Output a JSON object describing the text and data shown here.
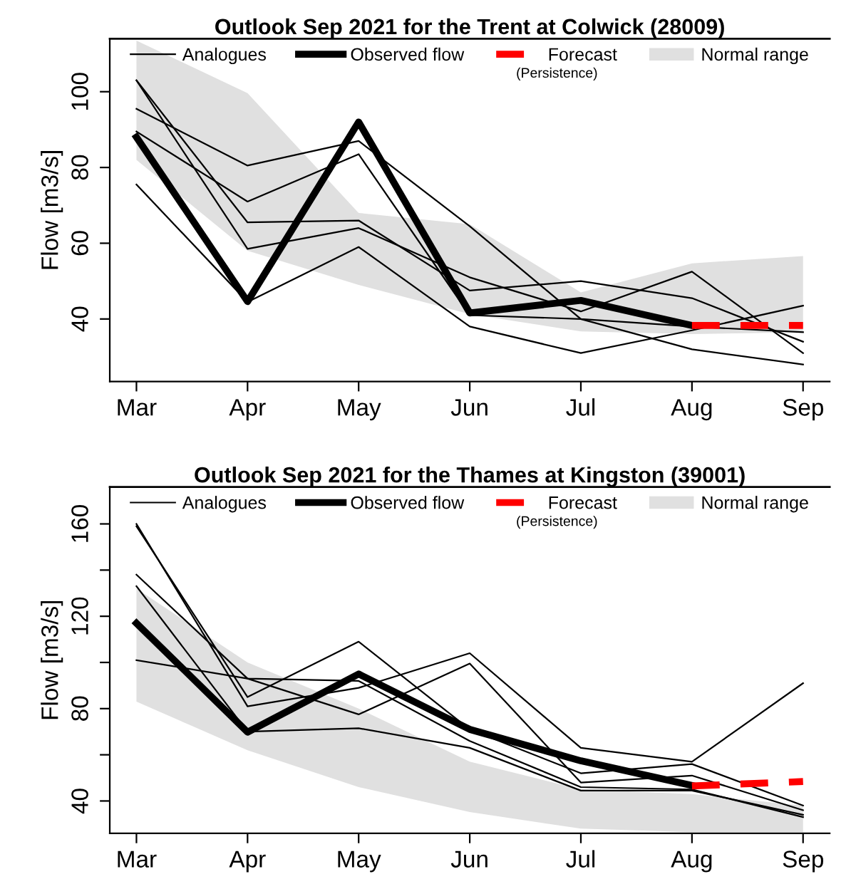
{
  "chart_data": [
    {
      "type": "line",
      "title": "Outlook Sep 2021 for the Trent at Colwick (28009)",
      "ylabel": "Flow [m3/s]",
      "categories": [
        "Mar",
        "Apr",
        "May",
        "Jun",
        "Jul",
        "Aug",
        "Sep"
      ],
      "ylim": [
        23.5,
        114
      ],
      "yticks": [
        40,
        60,
        80,
        100
      ],
      "grid": false,
      "legend": "top",
      "annotations": [
        "(Persistence)"
      ],
      "series": [
        {
          "type": "area",
          "name": "Normal range",
          "color": "#e0e0e0",
          "values": [
            null,
            null,
            null,
            null,
            null,
            null,
            null
          ],
          "lower": [
            82,
            58,
            49,
            41.3,
            36.7,
            36,
            36.5
          ],
          "upper": [
            113.5,
            99.6,
            68,
            65,
            47,
            54.7,
            56.6
          ]
        },
        {
          "name": "Analogues",
          "color": "#000000",
          "values": [
            103,
            65.5,
            66,
            47.5,
            50,
            45.5,
            34
          ]
        },
        {
          "color": "#000000",
          "values": [
            103,
            58.5,
            64,
            51,
            42,
            52.5,
            31
          ]
        },
        {
          "color": "#000000",
          "values": [
            95.5,
            80.5,
            87,
            64.5,
            40,
            38,
            36.5
          ]
        },
        {
          "color": "#000000",
          "values": [
            89.5,
            71,
            83.5,
            41,
            40,
            32,
            28
          ]
        },
        {
          "color": "#000000",
          "values": [
            75.5,
            44.5,
            59,
            38,
            31,
            37,
            43.5
          ]
        },
        {
          "name": "Observed flow",
          "color": "#000000",
          "values": [
            88,
            44.6,
            92,
            41.6,
            44.9,
            38.3,
            null
          ]
        },
        {
          "name": "Forecast",
          "color": "#ff0000",
          "line_style": "dashed",
          "values": [
            null,
            null,
            null,
            null,
            null,
            38.3,
            38.3
          ]
        }
      ]
    },
    {
      "type": "line",
      "title": "Outlook Sep 2021 for the Thames at Kingston (39001)",
      "ylabel": "Flow [m3/s]",
      "categories": [
        "Mar",
        "Apr",
        "May",
        "Jun",
        "Jul",
        "Aug",
        "Sep"
      ],
      "ylim": [
        26,
        176
      ],
      "yticks": [
        40,
        {
          "value": 60,
          "label": null
        },
        80,
        {
          "value": 100,
          "label": null
        },
        120,
        {
          "value": 140,
          "label": null
        },
        160
      ],
      "grid": false,
      "legend": "top",
      "annotations": [
        "(Persistence)"
      ],
      "series": [
        {
          "type": "area",
          "name": "Normal range",
          "color": "#e0e0e0",
          "values": [
            null,
            null,
            null,
            null,
            null,
            null,
            null
          ],
          "lower": [
            83,
            62,
            46,
            35.2,
            28,
            26.5,
            26.5
          ],
          "upper": [
            132,
            100,
            80,
            57,
            45,
            43,
            38
          ]
        },
        {
          "name": "Analogues",
          "color": "#000000",
          "values": [
            160,
            81,
            89,
            104,
            63,
            57,
            91
          ]
        },
        {
          "color": "#000000",
          "values": [
            159,
            85,
            109,
            71,
            52,
            56,
            38
          ]
        },
        {
          "color": "#000000",
          "values": [
            138,
            93,
            77.5,
            99.5,
            48,
            51,
            36
          ]
        },
        {
          "color": "#000000",
          "values": [
            133,
            70,
            71.5,
            63,
            44.5,
            44.5,
            34
          ]
        },
        {
          "color": "#000000",
          "values": [
            101,
            93,
            92,
            66,
            46,
            45,
            33
          ]
        },
        {
          "name": "Observed flow",
          "color": "#000000",
          "values": [
            117,
            69.8,
            95,
            71,
            57.4,
            46.7,
            null
          ]
        },
        {
          "name": "Forecast",
          "color": "#ff0000",
          "line_style": "dashed",
          "values": [
            null,
            null,
            null,
            null,
            null,
            46.5,
            48.4
          ]
        }
      ]
    }
  ]
}
